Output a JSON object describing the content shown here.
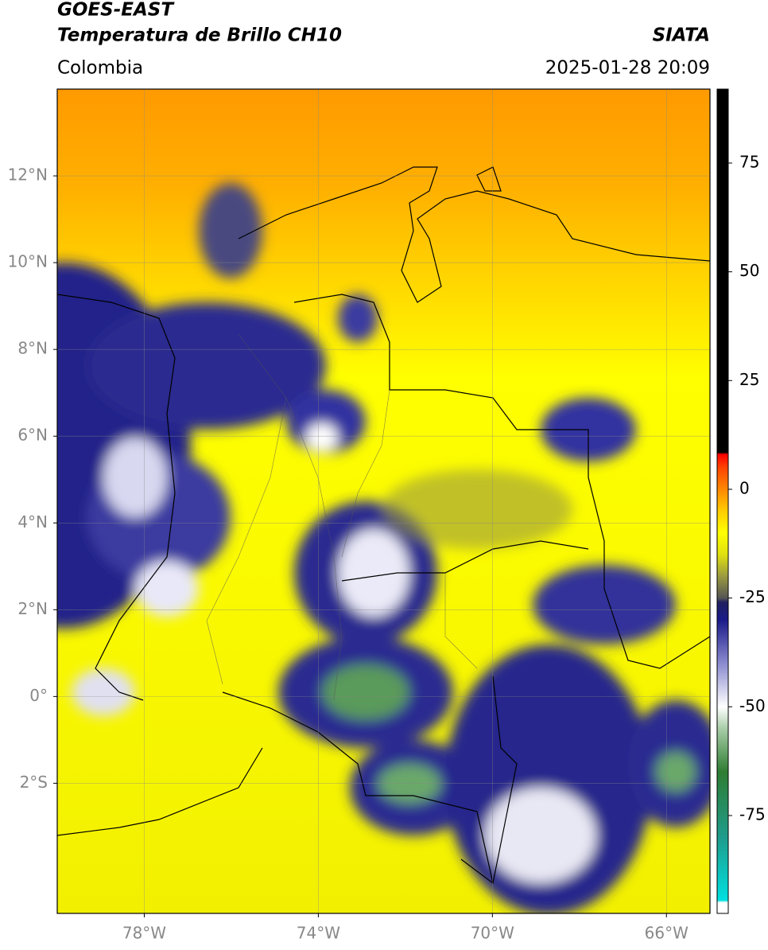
{
  "header": {
    "title": "GOES-EAST",
    "subtitle": "Temperatura de Brillo CH10",
    "region": "Colombia",
    "source": "SIATA",
    "datetime": "2025-01-28 20:09"
  },
  "map": {
    "lon_lim": [
      -80,
      -65
    ],
    "lat_lim": [
      -5,
      14
    ],
    "lon_ticks": [
      {
        "value": -78,
        "label": "78°W"
      },
      {
        "value": -74,
        "label": "74°W"
      },
      {
        "value": -70,
        "label": "70°W"
      },
      {
        "value": -66,
        "label": "66°W"
      }
    ],
    "lat_ticks": [
      {
        "value": 12,
        "label": "12°N"
      },
      {
        "value": 10,
        "label": "10°N"
      },
      {
        "value": 8,
        "label": "8°N"
      },
      {
        "value": 6,
        "label": "6°N"
      },
      {
        "value": 4,
        "label": "4°N"
      },
      {
        "value": 2,
        "label": "2°N"
      },
      {
        "value": 0,
        "label": "0°"
      },
      {
        "value": -2,
        "label": "2°S"
      }
    ],
    "grid": true
  },
  "colorbar": {
    "lim": [
      -97.5,
      92
    ],
    "ticks": [
      75,
      50,
      25,
      0,
      -25,
      -50,
      -75
    ],
    "colormap": [
      {
        "value": -97.5,
        "color": "#ffffff"
      },
      {
        "value": -95,
        "color": "#ffffff"
      },
      {
        "value": -94.5,
        "color": "#00e0e0"
      },
      {
        "value": -80,
        "color": "#1f9c8c"
      },
      {
        "value": -65,
        "color": "#2e7d32"
      },
      {
        "value": -55,
        "color": "#a8cda8"
      },
      {
        "value": -50,
        "color": "#ffffff"
      },
      {
        "value": -40,
        "color": "#8a8ad0"
      },
      {
        "value": -30,
        "color": "#1a1a8a"
      },
      {
        "value": -26,
        "color": "#202060"
      },
      {
        "value": -25,
        "color": "#555555"
      },
      {
        "value": -20,
        "color": "#9a9a40"
      },
      {
        "value": -15,
        "color": "#e0e010"
      },
      {
        "value": -10,
        "color": "#ffff00"
      },
      {
        "value": -5,
        "color": "#ffcc00"
      },
      {
        "value": 0,
        "color": "#ff8800"
      },
      {
        "value": 5,
        "color": "#ff4400"
      },
      {
        "value": 8,
        "color": "#ff0000"
      },
      {
        "value": 8.5,
        "color": "#000000"
      },
      {
        "value": 92,
        "color": "#000000"
      }
    ]
  }
}
